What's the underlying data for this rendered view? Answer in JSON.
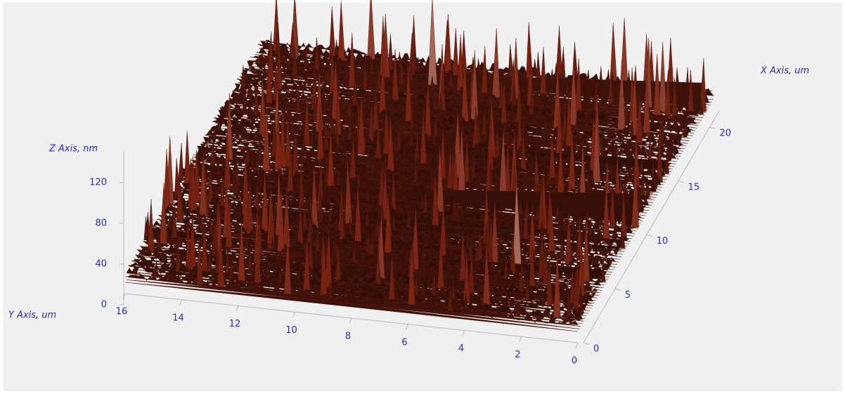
{
  "chart_data": {
    "type": "surface3d",
    "x_label": "X Axis, um",
    "y_label": "Y Axis, um",
    "z_label": "Z Axis, nm",
    "xlim": [
      0,
      21.5
    ],
    "xticks": [
      0,
      5,
      10,
      15,
      20
    ],
    "ylim": [
      0,
      16
    ],
    "yticks": [
      0,
      2,
      4,
      6,
      8,
      10,
      12,
      14,
      16
    ],
    "zlim": [
      0,
      150
    ],
    "zticks": [
      0,
      40,
      80,
      120
    ],
    "colormap": [
      "#1e0905",
      "#7a2412",
      "#f2ebe4"
    ]
  }
}
